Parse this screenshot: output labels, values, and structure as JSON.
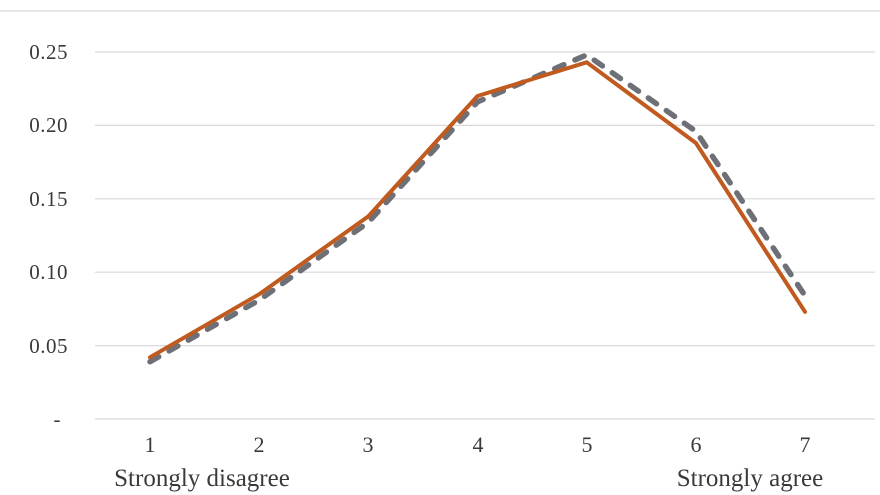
{
  "chart_data": {
    "type": "line",
    "title": "",
    "xlabel": "",
    "ylabel": "",
    "categories": [
      "1",
      "2",
      "3",
      "4",
      "5",
      "6",
      "7"
    ],
    "series": [
      {
        "id": "dashed-gray-series",
        "style": "dashed",
        "color": "#6d7076",
        "values": [
          0.039,
          0.081,
          0.134,
          0.216,
          0.248,
          0.196,
          0.084
        ]
      },
      {
        "id": "solid-orange-series",
        "style": "solid",
        "color": "#c05a1e",
        "values": [
          0.042,
          0.085,
          0.138,
          0.22,
          0.243,
          0.188,
          0.073
        ]
      }
    ],
    "yticks": [
      0,
      0.05,
      0.1,
      0.15,
      0.2,
      0.25
    ],
    "ytick_labels_top_to_bottom": [
      "0.25",
      "0.20",
      "0.15",
      "0.10",
      "0.05",
      "-"
    ],
    "ylim": [
      0,
      0.25
    ],
    "grid": "horizontal-only",
    "legend": "none",
    "x_axis_annotations": {
      "left": "Strongly disagree",
      "right": "Strongly agree"
    },
    "colors": {
      "gridline": "#d9d9d9",
      "top_border": "#d9d9d9",
      "text": "#3a3a3a"
    }
  }
}
